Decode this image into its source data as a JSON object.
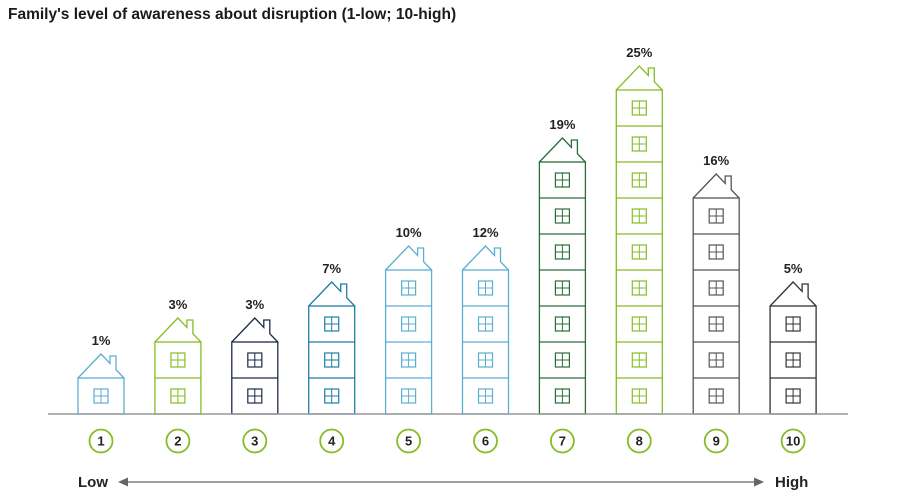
{
  "chart_data": {
    "type": "bar",
    "title": "Family's level of awareness about disruption (1-low; 10-high)",
    "categories": [
      "1",
      "2",
      "3",
      "4",
      "5",
      "6",
      "7",
      "8",
      "9",
      "10"
    ],
    "values": [
      1,
      3,
      3,
      7,
      10,
      12,
      19,
      25,
      16,
      5
    ],
    "value_labels": [
      "1%",
      "3%",
      "3%",
      "7%",
      "10%",
      "12%",
      "19%",
      "25%",
      "16%",
      "5%"
    ],
    "floors": [
      1,
      2,
      2,
      3,
      4,
      4,
      7,
      9,
      6,
      3
    ],
    "axis_low_label": "Low",
    "axis_high_label": "High",
    "colors": [
      "#5aafd1",
      "#86bc25",
      "#1e2a4a",
      "#1f7ea6",
      "#5aafd1",
      "#5aafd1",
      "#2a6e3a",
      "#86bc25",
      "#555555",
      "#333333"
    ],
    "circle_color": "#86bc25",
    "baseline_color": "#999999"
  }
}
